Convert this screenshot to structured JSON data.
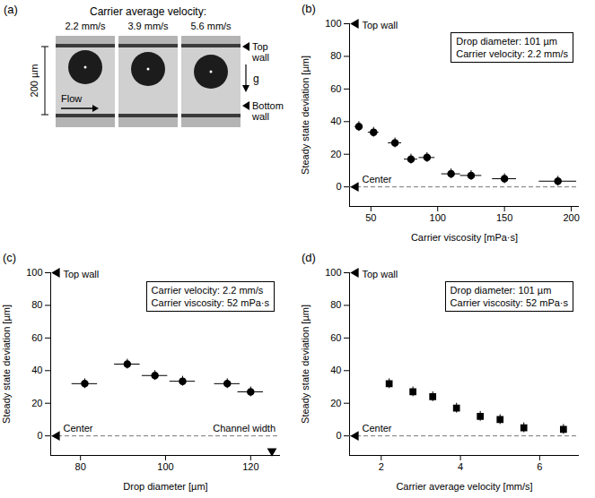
{
  "panel_a": {
    "label": "(a)",
    "heading": "Carrier average velocity:",
    "velocities": [
      "2.2 mm/s",
      "3.9 mm/s",
      "5.6 mm/s"
    ],
    "scale_bar": "200 µm",
    "flow": "Flow",
    "gravity": "g",
    "top_wall": "Top wall",
    "bottom_wall": "Bottom wall"
  },
  "chart_data": [
    {
      "type": "scatter",
      "panel": "(b)",
      "x_label": "Carrier viscosity [mPa·s]",
      "y_label": "Steady state deviation [µm]",
      "x": [
        41,
        52,
        68,
        80,
        92,
        110,
        125,
        150,
        190
      ],
      "values": [
        37,
        33.5,
        27,
        17,
        18,
        8,
        7,
        5,
        3.5
      ],
      "x_errors": [
        3,
        4,
        5,
        5,
        6,
        7,
        8,
        9,
        14
      ],
      "y_errors": [
        3,
        3,
        3,
        3,
        3,
        3,
        3,
        3,
        3
      ],
      "xlim": [
        34,
        206
      ],
      "xticks": [
        50,
        100,
        150,
        200
      ],
      "ylim": [
        -12,
        100
      ],
      "yticks": [
        0,
        20,
        40,
        60,
        80,
        100
      ],
      "grid": false,
      "marker": "circle",
      "color": "#000000",
      "info_box": [
        "Drop diameter: 101 µm",
        "Carrier velocity: 2.2 mm/s"
      ],
      "annotations": {
        "top": {
          "text": "Top wall",
          "y": 100
        },
        "center": {
          "text": "Center",
          "y": 0
        }
      }
    },
    {
      "type": "scatter",
      "panel": "(c)",
      "x_label": "Drop diameter [µm]",
      "y_label": "Steady state deviation [µm]",
      "x": [
        81,
        91,
        97.5,
        104,
        114.5,
        120
      ],
      "values": [
        32,
        44,
        37,
        33.5,
        32,
        27
      ],
      "x_errors": [
        3,
        3,
        3,
        3,
        3,
        3
      ],
      "y_errors": [
        3,
        3,
        3,
        3,
        3,
        3
      ],
      "xlim": [
        73,
        127
      ],
      "xticks": [
        80,
        100,
        120
      ],
      "ylim": [
        -12,
        100
      ],
      "yticks": [
        0,
        20,
        40,
        60,
        80,
        100
      ],
      "grid": false,
      "marker": "circle",
      "color": "#000000",
      "info_box": [
        "Carrier velocity: 2.2 mm/s",
        "Carrier viscosity: 52 mPa·s"
      ],
      "annotations": {
        "top": {
          "text": "Top wall",
          "y": 100
        },
        "center": {
          "text": "Center",
          "y": 0
        },
        "channel_width": {
          "text": "Channel width",
          "x": 125
        }
      }
    },
    {
      "type": "scatter",
      "panel": "(d)",
      "x_label": "Carrier average velocity [mm/s]",
      "y_label": "Steady state deviation [µm]",
      "x": [
        2.2,
        2.8,
        3.3,
        3.9,
        4.5,
        5.0,
        5.6,
        6.6
      ],
      "values": [
        32,
        27,
        24,
        17,
        12,
        10,
        5,
        4
      ],
      "y_errors": [
        3,
        3,
        3,
        3,
        3,
        3,
        3,
        3
      ],
      "xlim": [
        1.2,
        7
      ],
      "xticks": [
        2,
        4,
        6
      ],
      "ylim": [
        -12,
        100
      ],
      "yticks": [
        0,
        20,
        40,
        60,
        80,
        100
      ],
      "grid": false,
      "marker": "square",
      "color": "#000000",
      "info_box": [
        "Drop diameter: 101 µm",
        "Carrier viscosity: 52 mPa·s"
      ],
      "annotations": {
        "top": {
          "text": "Top wall",
          "y": 100
        },
        "center": {
          "text": "Center",
          "y": 0
        }
      }
    }
  ]
}
